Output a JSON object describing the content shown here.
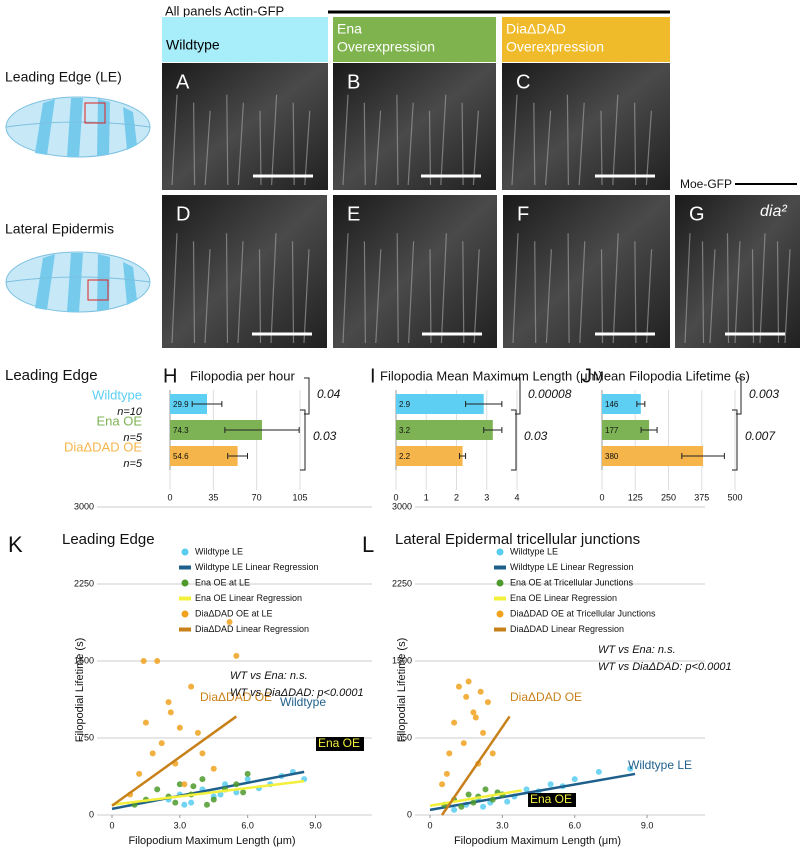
{
  "header": {
    "title": "All panels Actin-GFP",
    "columns": [
      [
        "Wildtype"
      ],
      [
        "Ena",
        "Overexpression"
      ],
      [
        "DiaΔDAD",
        "Overexpression"
      ]
    ]
  },
  "rows": [
    "Leading Edge (LE)",
    "Lateral Epidermis"
  ],
  "panels": [
    "A",
    "B",
    "C",
    "D",
    "E",
    "F",
    "G"
  ],
  "moe": {
    "label": "Moe-GFP",
    "genotype": "dia²"
  },
  "section_label": "Leading Edge",
  "chart_data": [
    {
      "type": "bar",
      "letter": "H",
      "title": "Filopodia per hour",
      "categories": [
        "Wildtype",
        "Ena OE",
        "DiaΔDAD OE"
      ],
      "sample_sizes": [
        "n=10",
        "n=5",
        "n=5"
      ],
      "colors": [
        "#5ccff3",
        "#7db354",
        "#f5b54b"
      ],
      "values": [
        29.9,
        74.3,
        54.6
      ],
      "errors": [
        12,
        30,
        8
      ],
      "xlim": [
        0,
        105
      ],
      "xticks": [
        0,
        35,
        70,
        105
      ],
      "grid": true,
      "p_values": [
        "0.04",
        "0.03"
      ]
    },
    {
      "type": "bar",
      "letter": "I",
      "title": "Filopodia Mean Maximum Length (μm)",
      "colors": [
        "#5ccff3",
        "#7db354",
        "#f5b54b"
      ],
      "values": [
        2.9,
        3.2,
        2.2
      ],
      "errors": [
        0.6,
        0.3,
        0.1
      ],
      "xlim": [
        0,
        4
      ],
      "xticks": [
        0,
        1,
        2,
        3,
        4
      ],
      "grid": true,
      "p_values": [
        "0.00008",
        "0.03"
      ]
    },
    {
      "type": "bar",
      "letter": "J",
      "title": "Mean Filopodia Lifetime (s)",
      "colors": [
        "#5ccff3",
        "#7db354",
        "#f5b54b"
      ],
      "values": [
        146,
        177,
        380
      ],
      "errors": [
        15,
        30,
        80
      ],
      "xlim": [
        0,
        500
      ],
      "xticks": [
        0,
        125,
        250,
        375,
        500
      ],
      "grid": true,
      "p_values": [
        "0.003",
        "0.007"
      ]
    },
    {
      "type": "scatter",
      "letter": "K",
      "title": "Leading Edge",
      "xlabel": "Filopodium Maximum Length (μm)",
      "ylabel": "Filopodial Lifetime (s)",
      "xlim": [
        0,
        11.5
      ],
      "xticks": [
        0,
        {
          "value": 3,
          "label": "3.0"
        },
        {
          "value": 6,
          "label": "6.0"
        },
        {
          "value": 9,
          "label": "9.0"
        }
      ],
      "ylim": [
        0,
        3000
      ],
      "yticks": [
        0,
        750,
        1500,
        2250,
        3000
      ],
      "grid": true,
      "series": [
        {
          "name": "Wildtype LE",
          "type": "scatter",
          "color": "#58cdf0",
          "x": [
            2.5,
            3,
            3.5,
            4,
            4.5,
            5,
            5.5,
            6,
            6.5,
            7,
            7.5,
            8,
            8.5,
            3.2,
            4.8
          ],
          "values": [
            150,
            200,
            120,
            250,
            180,
            300,
            220,
            350,
            260,
            300,
            380,
            420,
            350,
            100,
            200
          ]
        },
        {
          "name": "Wildtype LE Linear Regression",
          "type": "line",
          "color": "#1f5f8b",
          "x": [
            0,
            8.5
          ],
          "values": [
            60,
            420
          ]
        },
        {
          "name": "Ena OE at  LE",
          "type": "scatter",
          "color": "#4e9a2c",
          "x": [
            1,
            1.5,
            2,
            2.5,
            3,
            3.5,
            4,
            4.5,
            5,
            5.5,
            6,
            2.8,
            3.6,
            4.2,
            5.8
          ],
          "values": [
            100,
            150,
            250,
            180,
            300,
            200,
            350,
            150,
            250,
            300,
            400,
            120,
            280,
            100,
            220
          ]
        },
        {
          "name": "Ena OE Linear Regression",
          "type": "line",
          "color": "#f3f03c",
          "x": [
            0,
            8.5
          ],
          "values": [
            100,
            330
          ]
        },
        {
          "name": "DiaΔDAD OE at LE",
          "type": "scatter",
          "color": "#f0a21e",
          "x": [
            0.8,
            1.2,
            1.5,
            1.8,
            2,
            2.2,
            2.5,
            2.8,
            3,
            3.2,
            3.5,
            4,
            4.5,
            5.2,
            5.5,
            1.4,
            2.6,
            3.8
          ],
          "values": [
            200,
            400,
            900,
            600,
            1500,
            700,
            1100,
            500,
            850,
            300,
            1250,
            600,
            450,
            1880,
            1550,
            1500,
            1000,
            800
          ]
        },
        {
          "name": "DiaΔDAD Linear Regression",
          "type": "line",
          "color": "#c8801a",
          "x": [
            0,
            5.5
          ],
          "values": [
            90,
            960
          ]
        }
      ],
      "line_labels": [
        "Wildtype",
        "Ena OE",
        "DiaΔDAD OE"
      ],
      "annotations": [
        "WT vs Ena: n.s.",
        "WT vs DiaΔDAD: p<0.0001"
      ]
    },
    {
      "type": "scatter",
      "letter": "L",
      "title": "Lateral Epidermal tricellular junctions",
      "xlabel": "Filopodium Maximum Length (μm)",
      "ylabel": "Filopodial Lifetime (s)",
      "xlim": [
        0,
        11.4
      ],
      "xticks": [
        0,
        {
          "value": 3,
          "label": "3.0"
        },
        {
          "value": 6,
          "label": "6.0"
        },
        {
          "value": 9,
          "label": "9.0"
        }
      ],
      "ylim": [
        0,
        3000
      ],
      "yticks": [
        0,
        750,
        1500,
        2250,
        3000
      ],
      "grid": true,
      "series": [
        {
          "name": "Wildtype LE",
          "type": "scatter",
          "color": "#58cdf0",
          "x": [
            1,
            1.5,
            2,
            2.5,
            3,
            3.5,
            4,
            4.5,
            5,
            5.5,
            6,
            7,
            8.3,
            2.2,
            3.2
          ],
          "values": [
            50,
            100,
            150,
            120,
            200,
            180,
            250,
            230,
            300,
            280,
            350,
            420,
            450,
            80,
            130
          ]
        },
        {
          "name": "Wildtype LE Linear Regression",
          "type": "line",
          "color": "#1f5f8b",
          "x": [
            0,
            8.5
          ],
          "values": [
            50,
            400
          ]
        },
        {
          "name": "Ena OE at Tricellular Junctions",
          "type": "scatter",
          "color": "#4e9a2c",
          "x": [
            0.6,
            1,
            1.3,
            1.6,
            2,
            2.3,
            2.6,
            3,
            1.8,
            2.8
          ],
          "values": [
            100,
            150,
            80,
            200,
            180,
            250,
            150,
            200,
            120,
            220
          ]
        },
        {
          "name": "Ena OE Linear Regression",
          "type": "line",
          "color": "#f3f03c",
          "x": [
            0,
            3.8
          ],
          "values": [
            90,
            240
          ]
        },
        {
          "name": "DiaΔDAD OE at Tricellular Junctions",
          "type": "scatter",
          "color": "#f0a21e",
          "x": [
            0.5,
            0.8,
            1,
            1.2,
            1.4,
            1.6,
            1.8,
            2,
            2.2,
            2.4,
            2.6,
            0.7,
            1.5,
            2.1,
            1.9
          ],
          "values": [
            300,
            600,
            900,
            1250,
            700,
            1300,
            1000,
            500,
            800,
            1100,
            600,
            400,
            1150,
            1200,
            950
          ]
        },
        {
          "name": "DiaΔDAD Linear Regression",
          "type": "line",
          "color": "#c8801a",
          "x": [
            0.5,
            3.3
          ],
          "values": [
            0,
            960
          ]
        }
      ],
      "line_labels": [
        "Wildtype LE",
        "Ena OE",
        "DiaΔDAD OE"
      ],
      "annotations": [
        "WT vs Ena: n.s.",
        "WT vs DiaΔDAD: p<0.0001"
      ]
    }
  ]
}
